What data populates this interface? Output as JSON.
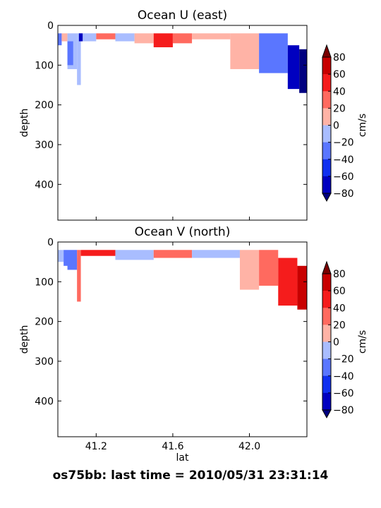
{
  "suptitle": "os75bb: last time = 2010/05/31 23:31:14",
  "colorbar": {
    "label": "cm/s",
    "ticks": [
      80,
      60,
      40,
      20,
      0,
      -20,
      -40,
      -60,
      -80
    ],
    "levels": [
      -80,
      -60,
      -40,
      -20,
      0,
      20,
      40,
      60,
      80
    ],
    "colors": {
      "over": "#7a0000",
      "60_80": "#c80000",
      "40_60": "#f51c1c",
      "20_40": "#ff6a5f",
      "0_20": "#ffb3a6",
      "-20_0": "#a9bdff",
      "-40_-20": "#5a76ff",
      "-60_-40": "#1030f0",
      "-80_-60": "#0000c0",
      "under": "#000080"
    }
  },
  "chart_data": [
    {
      "type": "heatmap",
      "title": "Ocean U (east)",
      "xlabel": "",
      "ylabel": "depth",
      "xlim": [
        41.0,
        42.3
      ],
      "ylim": [
        490,
        0
      ],
      "yticks": [
        0,
        100,
        200,
        300,
        400
      ],
      "xticks": [
        41.2,
        41.6,
        42.0
      ],
      "xticklabels_shown": false,
      "colorbar_label": "cm/s",
      "cells": [
        {
          "x": [
            41.0,
            41.02
          ],
          "d": [
            20,
            50
          ],
          "v": -30
        },
        {
          "x": [
            41.02,
            41.05
          ],
          "d": [
            20,
            40
          ],
          "v": 10
        },
        {
          "x": [
            41.05,
            41.1
          ],
          "d": [
            20,
            110
          ],
          "v": -10
        },
        {
          "x": [
            41.05,
            41.08
          ],
          "d": [
            40,
            100
          ],
          "v": -40
        },
        {
          "x": [
            41.1,
            41.12
          ],
          "d": [
            20,
            150
          ],
          "v": -10
        },
        {
          "x": [
            41.11,
            41.13
          ],
          "d": [
            20,
            40
          ],
          "v": -70
        },
        {
          "x": [
            41.13,
            41.2
          ],
          "d": [
            20,
            40
          ],
          "v": -20
        },
        {
          "x": [
            41.2,
            41.3
          ],
          "d": [
            20,
            35
          ],
          "v": 25
        },
        {
          "x": [
            41.3,
            41.4
          ],
          "d": [
            20,
            40
          ],
          "v": -10
        },
        {
          "x": [
            41.4,
            41.5
          ],
          "d": [
            20,
            45
          ],
          "v": 15
        },
        {
          "x": [
            41.5,
            41.6
          ],
          "d": [
            20,
            55
          ],
          "v": 50
        },
        {
          "x": [
            41.6,
            41.7
          ],
          "d": [
            20,
            45
          ],
          "v": 30
        },
        {
          "x": [
            41.7,
            41.9
          ],
          "d": [
            20,
            35
          ],
          "v": 10
        },
        {
          "x": [
            41.9,
            42.05
          ],
          "d": [
            20,
            110
          ],
          "v": 15
        },
        {
          "x": [
            42.05,
            42.2
          ],
          "d": [
            20,
            120
          ],
          "v": -25
        },
        {
          "x": [
            42.2,
            42.26
          ],
          "d": [
            50,
            160
          ],
          "v": -70
        },
        {
          "x": [
            42.26,
            42.3
          ],
          "d": [
            60,
            170
          ],
          "v": -90
        }
      ]
    },
    {
      "type": "heatmap",
      "title": "Ocean V (north)",
      "xlabel": "lat",
      "ylabel": "depth",
      "xlim": [
        41.0,
        42.3
      ],
      "ylim": [
        490,
        0
      ],
      "yticks": [
        0,
        100,
        200,
        300,
        400
      ],
      "xticks": [
        41.2,
        41.6,
        42.0
      ],
      "xticklabels": [
        "41.2",
        "41.6",
        "42.0"
      ],
      "colorbar_label": "cm/s",
      "cells": [
        {
          "x": [
            41.0,
            41.03
          ],
          "d": [
            20,
            50
          ],
          "v": -10
        },
        {
          "x": [
            41.03,
            41.1
          ],
          "d": [
            20,
            60
          ],
          "v": -30
        },
        {
          "x": [
            41.05,
            41.1
          ],
          "d": [
            40,
            70
          ],
          "v": -40
        },
        {
          "x": [
            41.1,
            41.12
          ],
          "d": [
            20,
            150
          ],
          "v": 20
        },
        {
          "x": [
            41.12,
            41.3
          ],
          "d": [
            20,
            35
          ],
          "v": 40
        },
        {
          "x": [
            41.3,
            41.5
          ],
          "d": [
            20,
            45
          ],
          "v": -20
        },
        {
          "x": [
            41.5,
            41.7
          ],
          "d": [
            20,
            40
          ],
          "v": 20
        },
        {
          "x": [
            41.7,
            41.95
          ],
          "d": [
            20,
            40
          ],
          "v": -10
        },
        {
          "x": [
            41.95,
            42.05
          ],
          "d": [
            20,
            120
          ],
          "v": 10
        },
        {
          "x": [
            42.05,
            42.15
          ],
          "d": [
            20,
            110
          ],
          "v": 30
        },
        {
          "x": [
            42.15,
            42.25
          ],
          "d": [
            40,
            160
          ],
          "v": 45
        },
        {
          "x": [
            42.25,
            42.3
          ],
          "d": [
            60,
            170
          ],
          "v": 70
        }
      ]
    }
  ]
}
